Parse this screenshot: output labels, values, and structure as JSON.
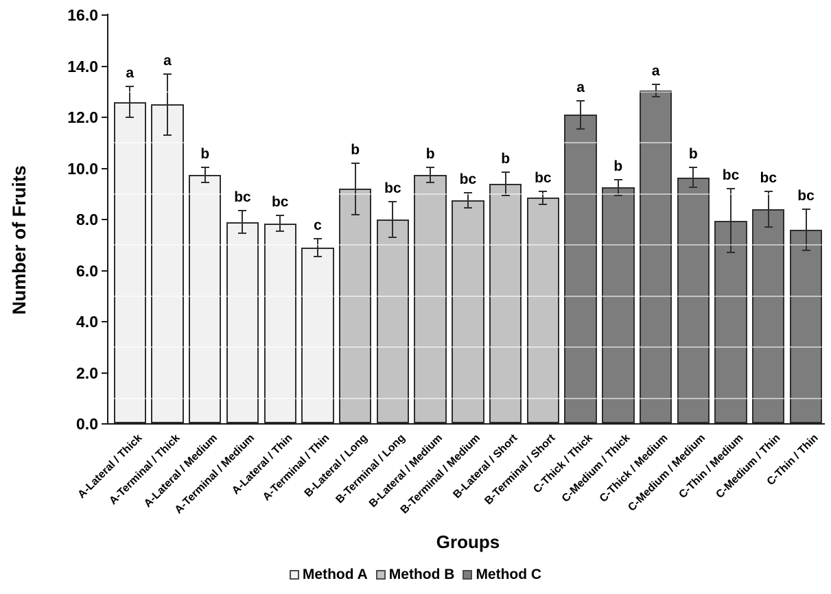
{
  "chart_data": {
    "type": "bar",
    "title": "",
    "xlabel": "Groups",
    "ylabel": "Number of Fruits",
    "ylim": [
      0,
      16
    ],
    "ytick_interval": 2,
    "ytick_labels": [
      "0.0",
      "2.0",
      "4.0",
      "6.0",
      "8.0",
      "10.0",
      "12.0",
      "14.0",
      "16.0"
    ],
    "grid": "faint white horizontal lines over bars at odd values",
    "legend_position": "bottom-center",
    "error_bars": true,
    "legend": [
      {
        "label": "Method A",
        "color": "#f1f1f1"
      },
      {
        "label": "Method B",
        "color": "#c2c2c2"
      },
      {
        "label": "Method C",
        "color": "#7d7d7d"
      }
    ],
    "bars": [
      {
        "category": "A-Lateral / Thick",
        "series": "Method A",
        "value": 12.6,
        "error": 0.6,
        "letter": "a"
      },
      {
        "category": "A-Terminal / Thick",
        "series": "Method A",
        "value": 12.5,
        "error": 1.2,
        "letter": "a"
      },
      {
        "category": "A-Lateral / Medium",
        "series": "Method A",
        "value": 9.75,
        "error": 0.3,
        "letter": "b"
      },
      {
        "category": "A-Terminal / Medium",
        "series": "Method A",
        "value": 7.9,
        "error": 0.45,
        "letter": "bc"
      },
      {
        "category": "A-Lateral / Thin",
        "series": "Method A",
        "value": 7.85,
        "error": 0.3,
        "letter": "bc"
      },
      {
        "category": "A-Terminal / Thin",
        "series": "Method A",
        "value": 6.9,
        "error": 0.35,
        "letter": "c"
      },
      {
        "category": "B-Lateral / Long",
        "series": "Method B",
        "value": 9.2,
        "error": 1.0,
        "letter": "b"
      },
      {
        "category": "B-Terminal / Long",
        "series": "Method B",
        "value": 8.0,
        "error": 0.7,
        "letter": "bc"
      },
      {
        "category": "B-Lateral / Medium",
        "series": "Method B",
        "value": 9.75,
        "error": 0.3,
        "letter": "b"
      },
      {
        "category": "B-Terminal / Medium",
        "series": "Method B",
        "value": 8.75,
        "error": 0.3,
        "letter": "bc"
      },
      {
        "category": "B-Lateral / Short",
        "series": "Method B",
        "value": 9.4,
        "error": 0.45,
        "letter": "b"
      },
      {
        "category": "B-Terminal / Short",
        "series": "Method B",
        "value": 8.85,
        "error": 0.25,
        "letter": "bc"
      },
      {
        "category": "C-Thick / Thick",
        "series": "Method C",
        "value": 12.1,
        "error": 0.55,
        "letter": "a"
      },
      {
        "category": "C-Medium / Thick",
        "series": "Method C",
        "value": 9.25,
        "error": 0.3,
        "letter": "b"
      },
      {
        "category": "C-Thick / Medium",
        "series": "Method C",
        "value": 13.05,
        "error": 0.25,
        "letter": "a"
      },
      {
        "category": "C-Medium / Medium",
        "series": "Method C",
        "value": 9.65,
        "error": 0.4,
        "letter": "b"
      },
      {
        "category": "C-Thin / Medium",
        "series": "Method C",
        "value": 7.95,
        "error": 1.25,
        "letter": "bc"
      },
      {
        "category": "C-Medium / Thin",
        "series": "Method C",
        "value": 8.4,
        "error": 0.7,
        "letter": "bc"
      },
      {
        "category": "C-Thin / Thin",
        "series": "Method C",
        "value": 7.6,
        "error": 0.8,
        "letter": "bc"
      }
    ]
  }
}
